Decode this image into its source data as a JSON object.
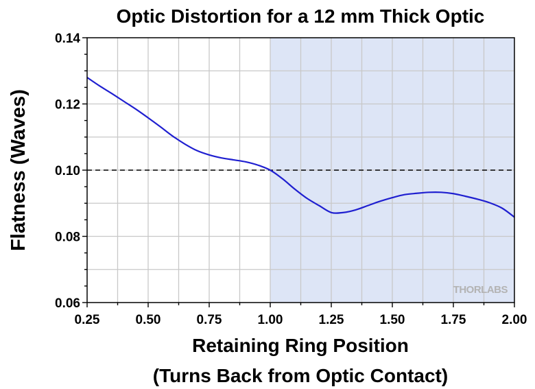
{
  "chart_data": {
    "type": "line",
    "title": "Optic Distortion for a 12 mm Thick Optic",
    "xlabel_line1": "Retaining Ring Position",
    "xlabel_line2": "(Turns Back from Optic Contact)",
    "ylabel": "Flatness (Waves)",
    "xlim": [
      0.25,
      2.0
    ],
    "ylim": [
      0.06,
      0.14
    ],
    "x_ticks": [
      "0.25",
      "0.50",
      "0.75",
      "1.00",
      "1.25",
      "1.50",
      "1.75",
      "2.00"
    ],
    "y_ticks": [
      "0.06",
      "0.08",
      "0.10",
      "0.12",
      "0.14"
    ],
    "grid": true,
    "shaded_region": {
      "x_start": 1.0,
      "x_end": 2.0,
      "color": "#dde5f6"
    },
    "reference_line": {
      "y": 0.1,
      "style": "dashed",
      "color": "#000000"
    },
    "series": [
      {
        "color": "#1f1fd0",
        "x": [
          0.25,
          0.3,
          0.35,
          0.4,
          0.45,
          0.5,
          0.55,
          0.6,
          0.65,
          0.7,
          0.75,
          0.8,
          0.85,
          0.9,
          0.95,
          1.0,
          1.05,
          1.1,
          1.15,
          1.2,
          1.25,
          1.3,
          1.35,
          1.4,
          1.45,
          1.5,
          1.55,
          1.6,
          1.65,
          1.7,
          1.75,
          1.8,
          1.85,
          1.9,
          1.95,
          2.0
        ],
        "y": [
          0.128,
          0.1255,
          0.1232,
          0.1208,
          0.1184,
          0.1158,
          0.1131,
          0.1103,
          0.1079,
          0.1059,
          0.1046,
          0.1037,
          0.1031,
          0.1025,
          0.1015,
          0.1,
          0.0974,
          0.0943,
          0.0915,
          0.0893,
          0.0872,
          0.0872,
          0.088,
          0.0893,
          0.0906,
          0.0917,
          0.0926,
          0.093,
          0.0933,
          0.0933,
          0.0929,
          0.0921,
          0.0912,
          0.0901,
          0.0885,
          0.0858
        ]
      }
    ],
    "watermark": "THORLABS"
  }
}
